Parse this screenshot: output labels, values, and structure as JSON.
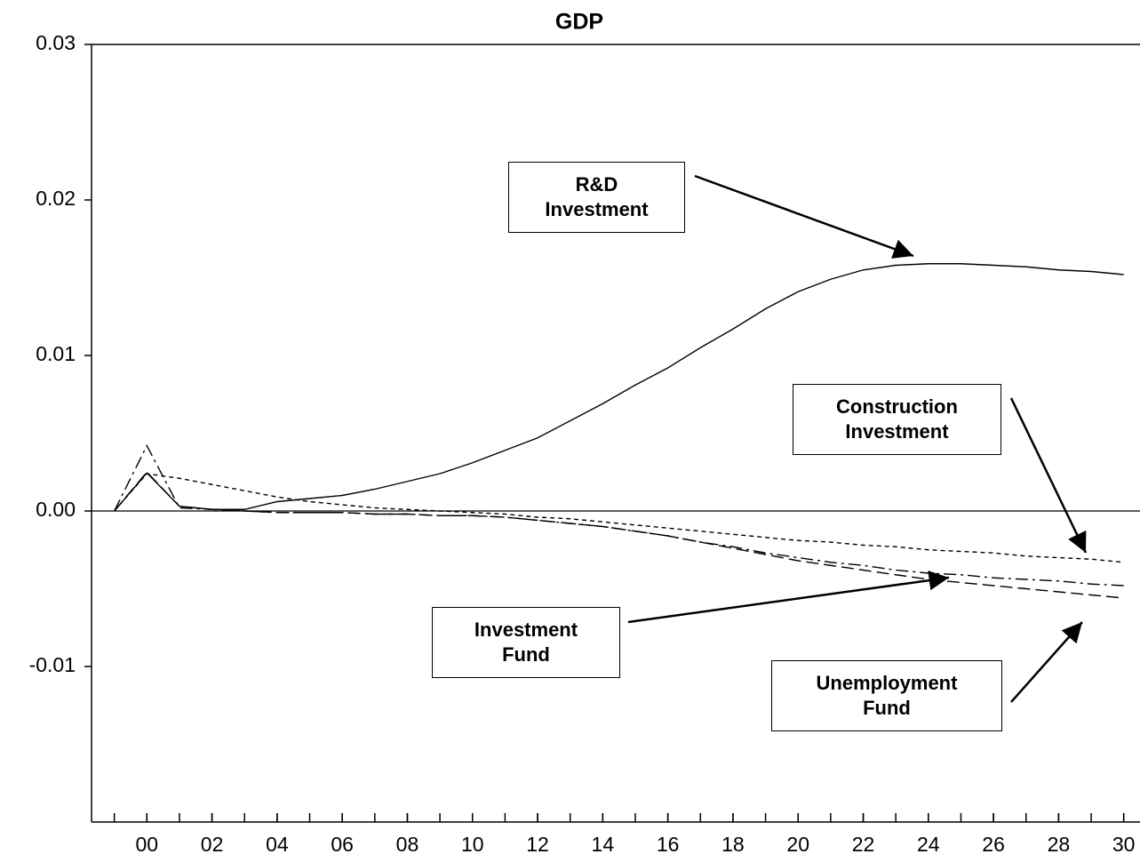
{
  "chart_data": {
    "type": "line",
    "title": "GDP",
    "x": [
      1999,
      2000,
      2001,
      2002,
      2003,
      2004,
      2005,
      2006,
      2007,
      2008,
      2009,
      2010,
      2011,
      2012,
      2013,
      2014,
      2015,
      2016,
      2017,
      2018,
      2019,
      2020,
      2021,
      2022,
      2023,
      2024,
      2025,
      2026,
      2027,
      2028,
      2029,
      2030
    ],
    "xlim": [
      1998.3,
      2030.5
    ],
    "xticks": [
      {
        "value": 2000,
        "label": "00"
      },
      {
        "value": 2002,
        "label": "02"
      },
      {
        "value": 2004,
        "label": "04"
      },
      {
        "value": 2006,
        "label": "06"
      },
      {
        "value": 2008,
        "label": "08"
      },
      {
        "value": 2010,
        "label": "10"
      },
      {
        "value": 2012,
        "label": "12"
      },
      {
        "value": 2014,
        "label": "14"
      },
      {
        "value": 2016,
        "label": "16"
      },
      {
        "value": 2018,
        "label": "18"
      },
      {
        "value": 2020,
        "label": "20"
      },
      {
        "value": 2022,
        "label": "22"
      },
      {
        "value": 2024,
        "label": "24"
      },
      {
        "value": 2026,
        "label": "26"
      },
      {
        "value": 2028,
        "label": "28"
      },
      {
        "value": 2030,
        "label": "30"
      }
    ],
    "ylim": [
      -0.02,
      0.03
    ],
    "yticks": [
      0.03,
      0.02,
      0.01,
      {
        "value": 0,
        "label": "0.00"
      },
      -0.01
    ],
    "series": [
      {
        "name": "R&D Investment",
        "color": "#000000",
        "dash": "solid",
        "values": [
          0,
          0.00245,
          0.0003,
          0.0001,
          0.0001,
          0.0006,
          0.0008,
          0.001,
          0.0014,
          0.0019,
          0.0024,
          0.0031,
          0.0039,
          0.0047,
          0.0058,
          0.0069,
          0.0081,
          0.0092,
          0.0105,
          0.0117,
          0.013,
          0.0141,
          0.0149,
          0.0155,
          0.0158,
          0.0159,
          0.0159,
          0.0158,
          0.0157,
          0.0155,
          0.0154,
          0.0152
        ]
      },
      {
        "name": "Construction Investment",
        "color": "#000000",
        "dash": "short-dash",
        "values": [
          0,
          0.0024,
          0.0021,
          0.0017,
          0.0013,
          0.0009,
          0.0006,
          0.0004,
          0.0002,
          0.0001,
          0,
          -0.0001,
          -0.0002,
          -0.0004,
          -0.0005,
          -0.0007,
          -0.0009,
          -0.0011,
          -0.0013,
          -0.0015,
          -0.0017,
          -0.0019,
          -0.002,
          -0.0022,
          -0.0023,
          -0.0025,
          -0.0026,
          -0.0027,
          -0.0029,
          -0.003,
          -0.0031,
          -0.0033
        ]
      },
      {
        "name": "Investment Fund",
        "color": "#000000",
        "dash": "dash-dot",
        "values": [
          0,
          0.0042,
          0.0002,
          0.0001,
          0,
          -0.0001,
          -0.0001,
          -0.0001,
          -0.0002,
          -0.0002,
          -0.0003,
          -0.0003,
          -0.0004,
          -0.0006,
          -0.0008,
          -0.001,
          -0.0013,
          -0.0016,
          -0.002,
          -0.0023,
          -0.0027,
          -0.003,
          -0.0033,
          -0.0035,
          -0.0038,
          -0.004,
          -0.0041,
          -0.0043,
          -0.0044,
          -0.0045,
          -0.0047,
          -0.0048
        ]
      },
      {
        "name": "Unemployment Fund",
        "color": "#000000",
        "dash": "long-dash",
        "values": [
          0,
          0.0025,
          0.0003,
          0.0001,
          0,
          -0.0001,
          -0.0001,
          -0.0001,
          -0.0002,
          -0.0002,
          -0.0003,
          -0.0003,
          -0.0004,
          -0.0006,
          -0.0008,
          -0.001,
          -0.0013,
          -0.0016,
          -0.002,
          -0.0024,
          -0.0028,
          -0.0032,
          -0.0035,
          -0.0038,
          -0.0041,
          -0.0044,
          -0.0046,
          -0.0048,
          -0.005,
          -0.0052,
          -0.0054,
          -0.0056
        ]
      }
    ]
  }
}
